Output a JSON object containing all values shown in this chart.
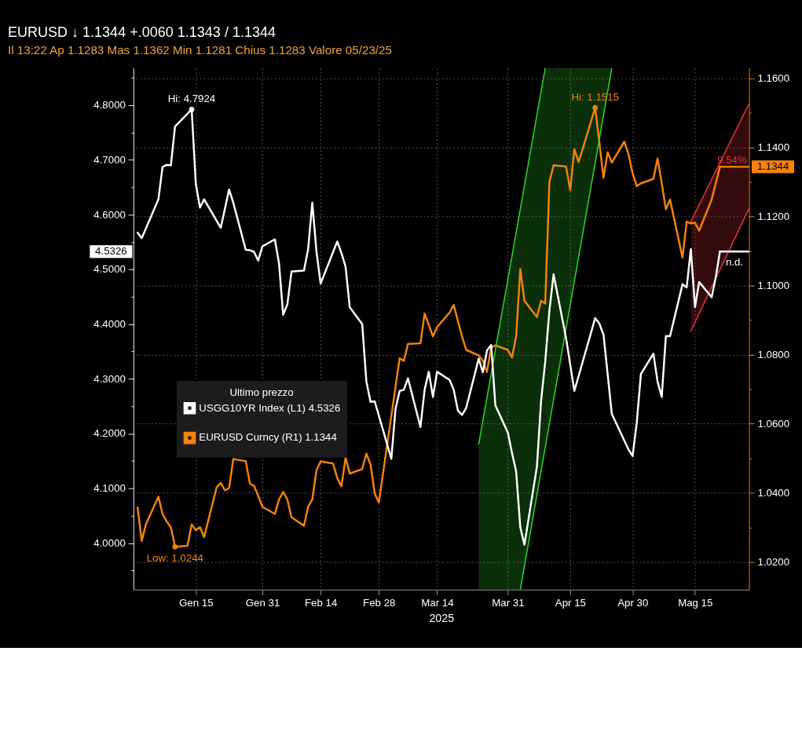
{
  "chart_data": {
    "type": "line",
    "title": "EURUSD ↓ 1.1344 +.0060 1.1343 / 1.1344",
    "subtitle": "Il 13:22 Ap 1.1283 Mas 1.1362 Min 1.1281 Chius 1.1283 Valore 05/23/25",
    "xlabel": "2025",
    "xlim": [
      "2024-12-31",
      "2025-05-28"
    ],
    "xticks": [
      {
        "value": "2025-01-15",
        "label": "Gen 15"
      },
      {
        "value": "2025-01-31",
        "label": "Gen 31"
      },
      {
        "value": "2025-02-14",
        "label": "Feb 14"
      },
      {
        "value": "2025-02-28",
        "label": "Feb 28"
      },
      {
        "value": "2025-03-14",
        "label": "Mar 14"
      },
      {
        "value": "2025-03-31",
        "label": "Mar 31"
      },
      {
        "value": "2025-04-15",
        "label": "Apr 15"
      },
      {
        "value": "2025-04-30",
        "label": "Apr 30"
      },
      {
        "value": "2025-05-15",
        "label": "Mag 15"
      }
    ],
    "ylim": [
      3.915,
      4.868
    ],
    "yticks": [
      {
        "value": 3.95,
        "label": null
      },
      {
        "value": 4,
        "label": "4.0000"
      },
      {
        "value": 4.05,
        "label": null
      },
      {
        "value": 4.1,
        "label": "4.1000"
      },
      {
        "value": 4.15,
        "label": null
      },
      {
        "value": 4.2,
        "label": "4.2000"
      },
      {
        "value": 4.25,
        "label": null
      },
      {
        "value": 4.3,
        "label": "4.3000"
      },
      {
        "value": 4.35,
        "label": null
      },
      {
        "value": 4.4,
        "label": "4.4000"
      },
      {
        "value": 4.45,
        "label": null
      },
      {
        "value": 4.5,
        "label": "4.5000"
      },
      {
        "value": 4.55,
        "label": null
      },
      {
        "value": 4.6,
        "label": "4.6000"
      },
      {
        "value": 4.65,
        "label": null
      },
      {
        "value": 4.7,
        "label": "4.7000"
      },
      {
        "value": 4.75,
        "label": null
      },
      {
        "value": 4.8,
        "label": "4.8000"
      },
      {
        "value": 4.85,
        "label": null
      }
    ],
    "y2lim": [
      1.012,
      1.163
    ],
    "y2ticks": [
      {
        "value": 1.02,
        "label": "1.0200"
      },
      {
        "value": 1.03,
        "label": null
      },
      {
        "value": 1.04,
        "label": "1.0400"
      },
      {
        "value": 1.05,
        "label": null
      },
      {
        "value": 1.06,
        "label": "1.0600"
      },
      {
        "value": 1.07,
        "label": null
      },
      {
        "value": 1.08,
        "label": "1.0800"
      },
      {
        "value": 1.09,
        "label": null
      },
      {
        "value": 1.1,
        "label": "1.1000"
      },
      {
        "value": 1.11,
        "label": null
      },
      {
        "value": 1.12,
        "label": "1.1200"
      },
      {
        "value": 1.13,
        "label": null
      },
      {
        "value": 1.14,
        "label": "1.1400"
      },
      {
        "value": 1.15,
        "label": null
      },
      {
        "value": 1.16,
        "label": "1.1600"
      }
    ],
    "grid": true,
    "legend": "left",
    "legend_title": "Ultimo prezzo",
    "annotations": [
      "4.5326"
    ],
    "series": [
      {
        "name": "USGG10YR Index (L1) 4.5326",
        "color": "#ffffff",
        "x": [
          "2025-01-01",
          "2025-01-02",
          "2025-01-06",
          "2025-01-07",
          "2025-01-08",
          "2025-01-09",
          "2025-01-10",
          "2025-01-14",
          "2025-01-15",
          "2025-01-16",
          "2025-01-17",
          "2025-01-21",
          "2025-01-23",
          "2025-01-24",
          "2025-01-27",
          "2025-01-28",
          "2025-01-29",
          "2025-01-30",
          "2025-01-31",
          "2025-02-03",
          "2025-02-04",
          "2025-02-05",
          "2025-02-06",
          "2025-02-07",
          "2025-02-10",
          "2025-02-11",
          "2025-02-12",
          "2025-02-13",
          "2025-02-14",
          "2025-02-18",
          "2025-02-19",
          "2025-02-20",
          "2025-02-21",
          "2025-02-24",
          "2025-02-25",
          "2025-02-26",
          "2025-02-27",
          "2025-03-03",
          "2025-03-04",
          "2025-03-05",
          "2025-03-06",
          "2025-03-07",
          "2025-03-10",
          "2025-03-11",
          "2025-03-12",
          "2025-03-13",
          "2025-03-14",
          "2025-03-17",
          "2025-03-18",
          "2025-03-19",
          "2025-03-20",
          "2025-03-21",
          "2025-03-24",
          "2025-03-25",
          "2025-03-26",
          "2025-03-27",
          "2025-03-28",
          "2025-03-31",
          "2025-04-01",
          "2025-04-02",
          "2025-04-03",
          "2025-04-04",
          "2025-04-07",
          "2025-04-08",
          "2025-04-09",
          "2025-04-10",
          "2025-04-11",
          "2025-04-14",
          "2025-04-15",
          "2025-04-16",
          "2025-04-21",
          "2025-04-22",
          "2025-04-23",
          "2025-04-25",
          "2025-04-29",
          "2025-04-30",
          "2025-05-01",
          "2025-05-02",
          "2025-05-05",
          "2025-05-06",
          "2025-05-07",
          "2025-05-08",
          "2025-05-09",
          "2025-05-12",
          "2025-05-13",
          "2025-05-14",
          "2025-05-15",
          "2025-05-16",
          "2025-05-19",
          "2025-05-20",
          "2025-05-21"
        ],
        "values": [
          4.567,
          4.557,
          4.628,
          4.687,
          4.691,
          4.69,
          4.761,
          4.7924,
          4.656,
          4.613,
          4.628,
          4.576,
          4.646,
          4.622,
          4.536,
          4.535,
          4.532,
          4.516,
          4.542,
          4.555,
          4.511,
          4.417,
          4.436,
          4.496,
          4.498,
          4.537,
          4.622,
          4.533,
          4.474,
          4.551,
          4.53,
          4.505,
          4.431,
          4.4,
          4.295,
          4.258,
          4.259,
          4.154,
          4.245,
          4.278,
          4.28,
          4.301,
          4.212,
          4.28,
          4.313,
          4.267,
          4.313,
          4.298,
          4.28,
          4.242,
          4.234,
          4.247,
          4.337,
          4.312,
          4.352,
          4.362,
          4.252,
          4.202,
          4.165,
          4.131,
          4.029,
          3.997,
          4.14,
          4.26,
          4.332,
          4.425,
          4.491,
          4.375,
          4.326,
          4.278,
          4.411,
          4.401,
          4.381,
          4.236,
          4.171,
          4.159,
          4.22,
          4.309,
          4.346,
          4.295,
          4.267,
          4.378,
          4.378,
          4.473,
          4.467,
          4.537,
          4.431,
          4.477,
          4.449,
          4.486,
          4.5326
        ],
        "value_labels": [
          null,
          null,
          null,
          null,
          null,
          null,
          null,
          "Hi: 4.7924",
          null,
          null,
          null,
          null,
          null,
          null,
          null,
          null,
          null,
          null,
          null,
          null,
          null,
          null,
          null,
          null,
          null,
          null,
          null,
          null,
          null,
          null,
          null,
          null,
          null,
          null,
          null,
          null,
          null,
          null,
          null,
          null,
          null,
          null,
          null,
          null,
          null,
          null,
          null,
          null,
          null,
          null,
          null,
          null,
          null,
          null,
          null,
          null,
          null,
          null,
          null,
          null,
          null,
          null,
          null,
          null,
          null,
          null,
          null,
          null,
          null,
          null,
          null,
          null,
          null,
          null,
          null,
          null,
          null,
          null,
          null,
          null,
          null,
          null,
          null,
          null,
          null,
          null,
          null,
          null,
          null,
          null,
          null
        ]
      },
      {
        "name": "EURUSD Curncy (R1) 1.1344",
        "color": "#f5820d",
        "axis": "y2",
        "x": [
          "2025-01-01",
          "2025-01-02",
          "2025-01-03",
          "2025-01-06",
          "2025-01-07",
          "2025-01-08",
          "2025-01-09",
          "2025-01-10",
          "2025-01-13",
          "2025-01-14",
          "2025-01-15",
          "2025-01-16",
          "2025-01-17",
          "2025-01-20",
          "2025-01-21",
          "2025-01-22",
          "2025-01-23",
          "2025-01-24",
          "2025-01-27",
          "2025-01-28",
          "2025-01-29",
          "2025-01-30",
          "2025-01-31",
          "2025-02-03",
          "2025-02-04",
          "2025-02-05",
          "2025-02-06",
          "2025-02-07",
          "2025-02-10",
          "2025-02-11",
          "2025-02-12",
          "2025-02-13",
          "2025-02-14",
          "2025-02-17",
          "2025-02-18",
          "2025-02-19",
          "2025-02-20",
          "2025-02-21",
          "2025-02-24",
          "2025-02-25",
          "2025-02-26",
          "2025-02-27",
          "2025-02-28",
          "2025-03-05",
          "2025-03-06",
          "2025-03-07",
          "2025-03-10",
          "2025-03-11",
          "2025-03-12",
          "2025-03-13",
          "2025-03-14",
          "2025-03-17",
          "2025-03-18",
          "2025-03-19",
          "2025-03-20",
          "2025-03-21",
          "2025-03-24",
          "2025-03-25",
          "2025-03-26",
          "2025-03-27",
          "2025-03-28",
          "2025-03-31",
          "2025-04-01",
          "2025-04-02",
          "2025-04-03",
          "2025-04-04",
          "2025-04-07",
          "2025-04-08",
          "2025-04-09",
          "2025-04-10",
          "2025-04-11",
          "2025-04-14",
          "2025-04-15",
          "2025-04-16",
          "2025-04-17",
          "2025-04-18",
          "2025-04-21",
          "2025-04-22",
          "2025-04-23",
          "2025-04-24",
          "2025-04-25",
          "2025-04-28",
          "2025-04-29",
          "2025-04-30",
          "2025-05-01",
          "2025-05-02",
          "2025-05-05",
          "2025-05-06",
          "2025-05-07",
          "2025-05-08",
          "2025-05-09",
          "2025-05-12",
          "2025-05-13",
          "2025-05-14",
          "2025-05-15",
          "2025-05-16",
          "2025-05-19",
          "2025-05-20",
          "2025-05-21"
        ],
        "values": [
          1.0358,
          1.0261,
          1.0309,
          1.0389,
          1.0339,
          1.0317,
          1.0301,
          1.0244,
          1.0247,
          1.0309,
          1.0292,
          1.0301,
          1.0272,
          1.0416,
          1.0429,
          1.0407,
          1.0414,
          1.0498,
          1.0492,
          1.0427,
          1.042,
          1.0391,
          1.036,
          1.0339,
          1.0381,
          1.0403,
          1.0381,
          1.0329,
          1.0305,
          1.036,
          1.0381,
          1.0465,
          1.0491,
          1.0485,
          1.0443,
          1.0419,
          1.0502,
          1.0456,
          1.0469,
          1.0514,
          1.0482,
          1.0399,
          1.0372,
          1.079,
          1.0782,
          1.0831,
          1.0833,
          1.0919,
          1.0887,
          1.0853,
          1.088,
          1.0922,
          1.0944,
          1.0897,
          1.0853,
          1.0814,
          1.0798,
          1.0782,
          1.075,
          1.0821,
          1.0827,
          1.0814,
          1.0792,
          1.0853,
          1.1048,
          1.0956,
          1.0909,
          1.0956,
          1.0948,
          1.13,
          1.1348,
          1.1345,
          1.1276,
          1.1395,
          1.1358,
          1.1395,
          1.1515,
          1.1415,
          1.1312,
          1.1386,
          1.1356,
          1.1417,
          1.1381,
          1.1325,
          1.1288,
          1.1296,
          1.1309,
          1.1368,
          1.1297,
          1.1221,
          1.1249,
          1.1081,
          1.1185,
          1.118,
          1.1182,
          1.1159,
          1.1249,
          1.1297,
          1.1344
        ],
        "value_labels": [
          null,
          null,
          null,
          null,
          null,
          null,
          null,
          "Low: 1.0244",
          null,
          null,
          null,
          null,
          null,
          null,
          null,
          null,
          null,
          null,
          null,
          null,
          null,
          null,
          null,
          null,
          null,
          null,
          null,
          null,
          null,
          null,
          null,
          null,
          null,
          null,
          null,
          null,
          null,
          null,
          null,
          null,
          null,
          null,
          null,
          null,
          null,
          null,
          null,
          null,
          null,
          null,
          null,
          null,
          null,
          null,
          null,
          null,
          null,
          null,
          null,
          null,
          null,
          null,
          null,
          null,
          null,
          null,
          null,
          null,
          null,
          null,
          null,
          null,
          null,
          null,
          null,
          null,
          "Hi: 1.1515",
          null,
          null,
          null,
          null,
          null,
          null,
          null,
          null,
          null,
          null,
          null,
          null,
          null,
          null,
          null,
          null,
          null,
          null,
          null,
          null,
          null,
          null
        ]
      },
      {
        "color": "#ffffff",
        "x": [
          "2025-05-21",
          "2025-05-28"
        ],
        "values": [
          4.5326,
          4.5326
        ],
        "value_labels": [
          null,
          "n.d."
        ]
      },
      {
        "color": "#f5820d",
        "axis": "y2",
        "x": [
          "2025-05-21",
          "2025-05-28"
        ],
        "values": [
          1.1344,
          1.1344
        ],
        "value_labels": [
          null,
          "1.1344"
        ]
      },
      {
        "color": "#2fd42f",
        "axis": "y2",
        "x": [
          "2025-03-24",
          "2025-04-03",
          "2025-04-09",
          "2025-04-25"
        ],
        "values": [
          null,
          null,
          null,
          null
        ],
        "lower": [
          1.012,
          1.012,
          1.0532,
          1.163
        ],
        "upper": [
          1.0541,
          1.1222,
          1.163,
          1.163
        ]
      },
      {
        "color": "#2fd42f",
        "axis": "y2",
        "x": [
          "2025-03-24",
          "2025-04-09"
        ],
        "values": [
          1.0541,
          1.163
        ]
      },
      {
        "color": "#2fd42f",
        "axis": "y2",
        "x": [
          "2025-04-03",
          "2025-04-25"
        ],
        "values": [
          1.012,
          1.163
        ]
      },
      {
        "color": "#e8323c",
        "axis": "y2",
        "x": [
          "2025-05-14",
          "2025-05-28"
        ],
        "values": [
          null,
          null
        ],
        "lower": [
          1.0868,
          1.1224
        ],
        "upper": [
          1.1185,
          1.1527
        ],
        "value_labels": [
          null,
          "9.54%"
        ]
      },
      {
        "color": "#e8323c",
        "axis": "y2",
        "x": [
          "2025-05-14",
          "2025-05-28"
        ],
        "values": [
          1.1185,
          1.1527
        ]
      },
      {
        "color": "#e8323c",
        "axis": "y2",
        "x": [
          "2025-05-14",
          "2025-05-28"
        ],
        "values": [
          1.0868,
          1.1224
        ]
      }
    ]
  }
}
